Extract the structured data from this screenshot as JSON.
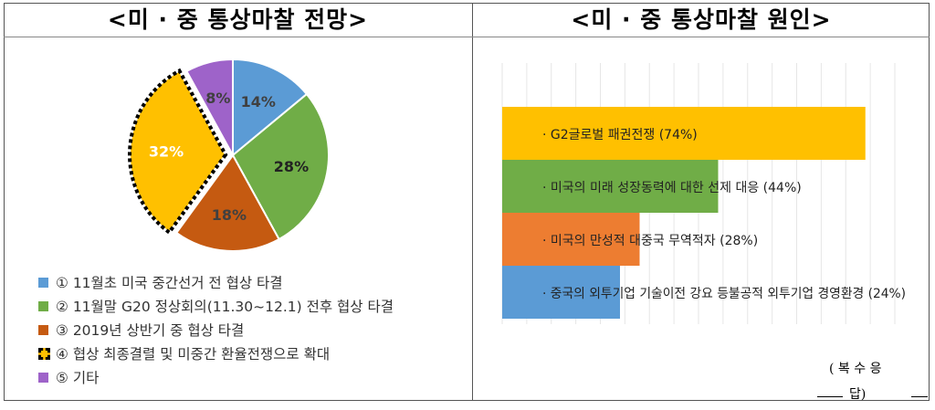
{
  "left_title": "<미 · 중 통상마찰 전망>",
  "right_title": "<미 · 중 통상마찰 원인>",
  "note": {
    "line1": "( 복 수 응",
    "line2": "답)"
  },
  "chart_data": [
    {
      "type": "pie",
      "title": "<미 · 중 통상마찰 전망>",
      "legend_position": "bottom-left",
      "slices": [
        {
          "label": "① 11월초 미국 중간선거 전 협상 타결",
          "value": 14,
          "value_label": "14%",
          "color": "#5B9BD5"
        },
        {
          "label": "② 11월말 G20 정상회의(11.30~12.1) 전후 협상 타결",
          "value": 28,
          "value_label": "28%",
          "color": "#70AD47"
        },
        {
          "label": "③ 2019년 상반기 중 협상 타결",
          "value": 18,
          "value_label": "18%",
          "color": "#C55A11"
        },
        {
          "label": "④ 협상 최종결렬 및 미중간 환율전쟁으로 확대",
          "value": 32,
          "value_label": "32%",
          "color": "#FFC000",
          "highlighted": true
        },
        {
          "label": "⑤ 기타",
          "value": 8,
          "value_label": "8%",
          "color": "#9E63C9"
        }
      ]
    },
    {
      "type": "bar",
      "orientation": "horizontal",
      "title": "<미 · 중 통상마찰 원인>",
      "xlim": [
        0,
        80
      ],
      "grid": true,
      "categories": [
        "· G2글로벌 패권전쟁 (74%)",
        "· 미국의 미래 성장동력에 대한 선제 대응 (44%)",
        "· 미국의 만성적 대중국 무역적자 (28%)",
        "· 중국의 외투기업 기술이전 강요 등불공적 외투기업 경영환경 (24%)"
      ],
      "values": [
        74,
        44,
        28,
        24
      ],
      "colors": [
        "#FFC000",
        "#70AD47",
        "#ED7D31",
        "#5B9BD5"
      ]
    }
  ]
}
